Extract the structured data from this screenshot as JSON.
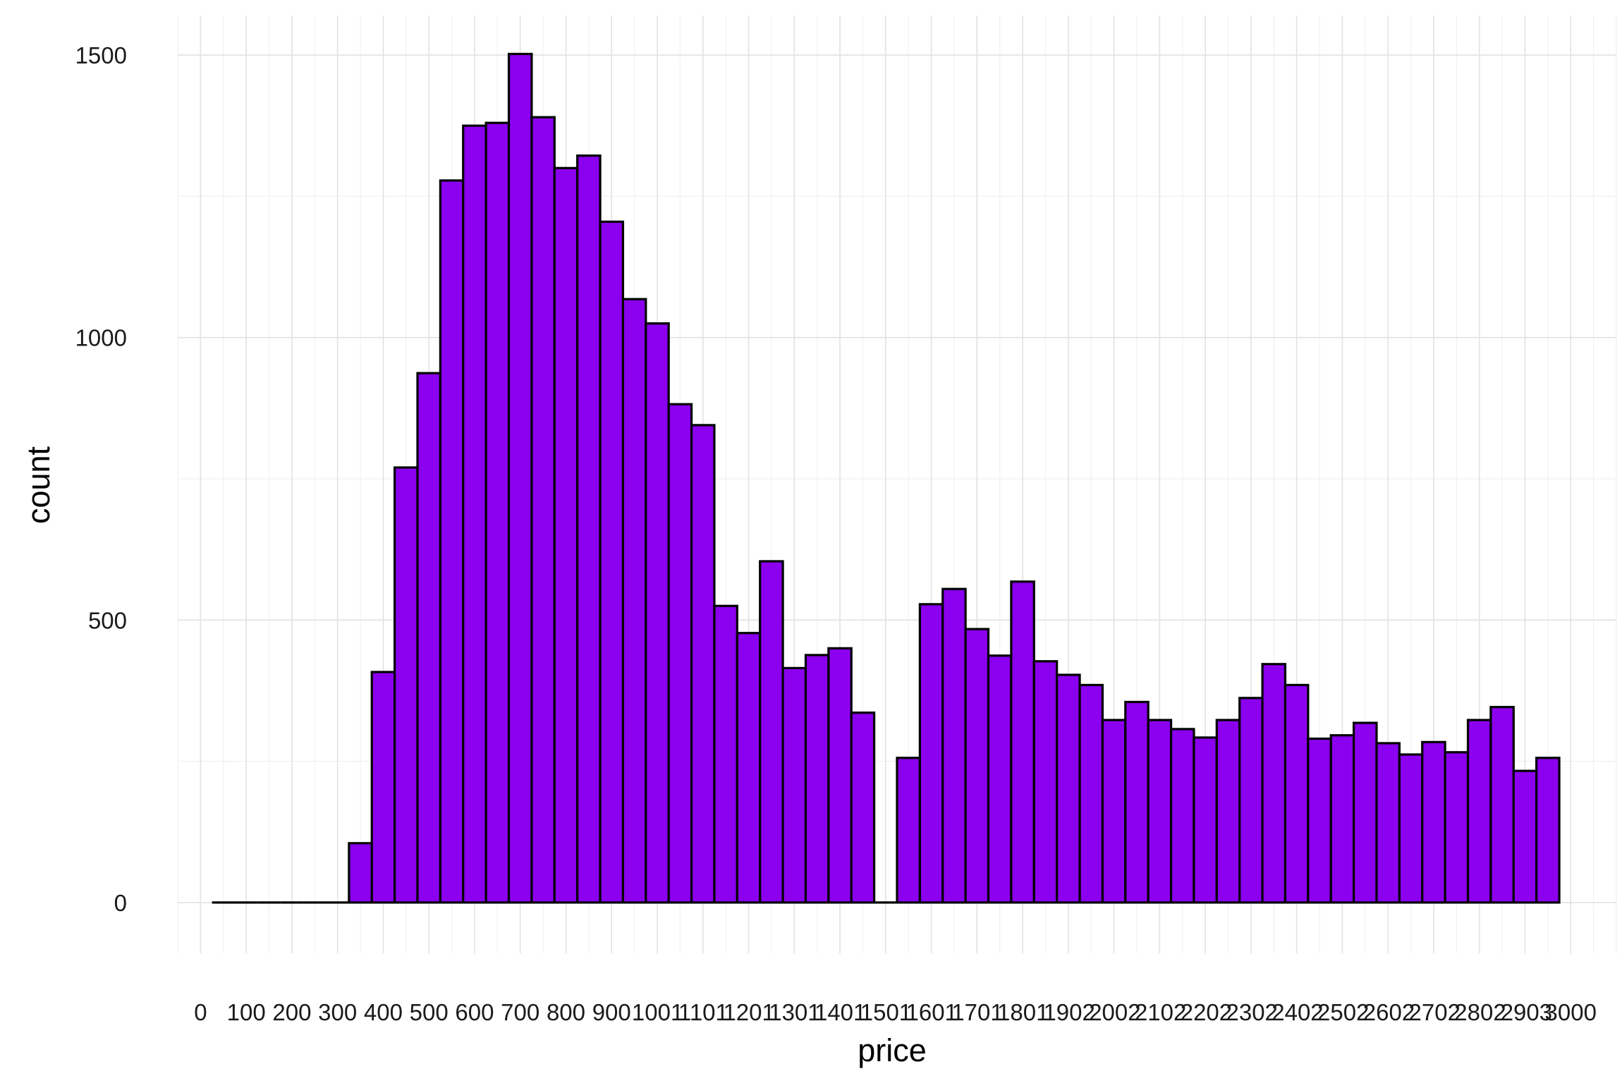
{
  "chart_data": {
    "type": "bar",
    "xlabel": "price",
    "ylabel": "count",
    "bin_width": 50,
    "xlim": [
      -50,
      3100
    ],
    "ylim": [
      -90,
      1570
    ],
    "x_ticks": [
      0,
      100,
      200,
      300,
      400,
      500,
      600,
      700,
      800,
      900,
      1001,
      1101,
      1201,
      1301,
      1401,
      1501,
      1601,
      1701,
      1801,
      1902,
      2002,
      2102,
      2202,
      2302,
      2402,
      2502,
      2602,
      2702,
      2802,
      2903,
      3000
    ],
    "y_ticks": [
      0,
      500,
      1000,
      1500
    ],
    "grid": true,
    "bar_color": "#8b00ee",
    "bar_outline": "#000000",
    "bin_starts": [
      25,
      75,
      125,
      175,
      225,
      275,
      325,
      375,
      425,
      475,
      525,
      575,
      625,
      675,
      725,
      775,
      825,
      875,
      925,
      975,
      1025,
      1075,
      1125,
      1175,
      1225,
      1275,
      1325,
      1375,
      1425,
      1475,
      1525,
      1575,
      1625,
      1675,
      1725,
      1775,
      1825,
      1875,
      1925,
      1975,
      2025,
      2075,
      2125,
      2175,
      2225,
      2275,
      2325,
      2375,
      2425,
      2475,
      2525,
      2575,
      2625,
      2675,
      2725,
      2775,
      2825,
      2875,
      2925
    ],
    "values": [
      0,
      0,
      0,
      0,
      0,
      0,
      105,
      408,
      770,
      937,
      1278,
      1375,
      1380,
      1502,
      1390,
      1300,
      1322,
      1205,
      1068,
      1025,
      882,
      845,
      525,
      477,
      604,
      415,
      438,
      450,
      336,
      0,
      256,
      528,
      555,
      484,
      437,
      568,
      427,
      403,
      385,
      323,
      355,
      323,
      307,
      292,
      323,
      362,
      422,
      385,
      290,
      296,
      318,
      282,
      262,
      284,
      266,
      323,
      346,
      233,
      256
    ]
  }
}
